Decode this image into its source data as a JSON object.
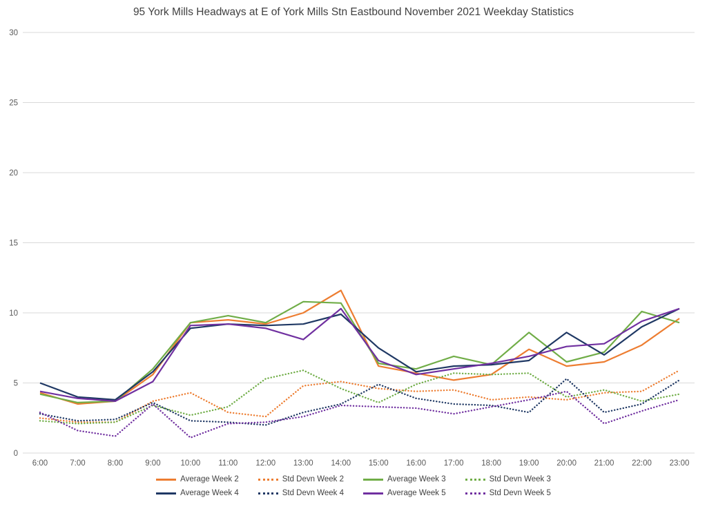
{
  "chart_data": {
    "type": "line",
    "title": "95 York Mills Headways at E of York Mills Stn Eastbound November 2021 Weekday Statistics",
    "xlabel": "",
    "ylabel": "",
    "ylim": [
      0,
      30
    ],
    "yticks": [
      0,
      5,
      10,
      15,
      20,
      25,
      30
    ],
    "grid": true,
    "legend_position": "bottom",
    "categories": [
      "6:00",
      "7:00",
      "8:00",
      "9:00",
      "10:00",
      "11:00",
      "12:00",
      "13:00",
      "14:00",
      "15:00",
      "16:00",
      "17:00",
      "18:00",
      "19:00",
      "20:00",
      "21:00",
      "22:00",
      "23:00"
    ],
    "series": [
      {
        "name": "Average Week 2",
        "color": "#ED7D31",
        "style": "solid",
        "values": [
          4.3,
          3.5,
          3.7,
          5.6,
          9.3,
          9.5,
          9.2,
          10.0,
          11.6,
          6.2,
          5.7,
          5.2,
          5.6,
          7.4,
          6.2,
          6.5,
          7.7,
          9.6
        ]
      },
      {
        "name": "Std Devn Week 2",
        "color": "#ED7D31",
        "style": "dotted",
        "values": [
          2.5,
          2.2,
          2.2,
          3.7,
          4.3,
          2.9,
          2.6,
          4.8,
          5.1,
          4.6,
          4.4,
          4.5,
          3.8,
          4.0,
          3.8,
          4.3,
          4.4,
          5.9
        ]
      },
      {
        "name": "Average Week 3",
        "color": "#70AD47",
        "style": "solid",
        "values": [
          4.2,
          3.6,
          3.7,
          6.0,
          9.3,
          9.8,
          9.3,
          10.8,
          10.7,
          6.4,
          6.0,
          6.9,
          6.3,
          8.6,
          6.5,
          7.2,
          10.1,
          9.3
        ]
      },
      {
        "name": "Std Devn Week 3",
        "color": "#70AD47",
        "style": "dotted",
        "values": [
          2.3,
          2.1,
          2.2,
          3.4,
          2.7,
          3.3,
          5.3,
          5.9,
          4.6,
          3.6,
          4.9,
          5.7,
          5.6,
          5.7,
          4.0,
          4.5,
          3.7,
          4.2
        ]
      },
      {
        "name": "Average Week 4",
        "color": "#1F3864",
        "style": "solid",
        "values": [
          5.0,
          4.0,
          3.8,
          5.8,
          8.9,
          9.2,
          9.1,
          9.2,
          9.9,
          7.5,
          5.8,
          6.2,
          6.3,
          6.6,
          8.6,
          7.0,
          9.0,
          10.3
        ]
      },
      {
        "name": "Std Devn Week 4",
        "color": "#1F3864",
        "style": "dotted",
        "values": [
          2.8,
          2.3,
          2.4,
          3.6,
          2.3,
          2.2,
          2.0,
          2.9,
          3.5,
          4.9,
          3.9,
          3.5,
          3.4,
          2.9,
          5.3,
          2.9,
          3.5,
          5.2
        ]
      },
      {
        "name": "Average Week 5",
        "color": "#7030A0",
        "style": "solid",
        "values": [
          4.4,
          3.9,
          3.7,
          5.1,
          9.1,
          9.2,
          8.9,
          8.1,
          10.3,
          6.6,
          5.6,
          6.0,
          6.4,
          6.9,
          7.6,
          7.8,
          9.4,
          10.3
        ]
      },
      {
        "name": "Std Devn Week 5",
        "color": "#7030A0",
        "style": "dotted",
        "values": [
          2.9,
          1.6,
          1.2,
          3.5,
          1.1,
          2.1,
          2.2,
          2.6,
          3.4,
          3.3,
          3.2,
          2.8,
          3.3,
          3.8,
          4.4,
          2.1,
          3.0,
          3.8
        ]
      }
    ]
  }
}
